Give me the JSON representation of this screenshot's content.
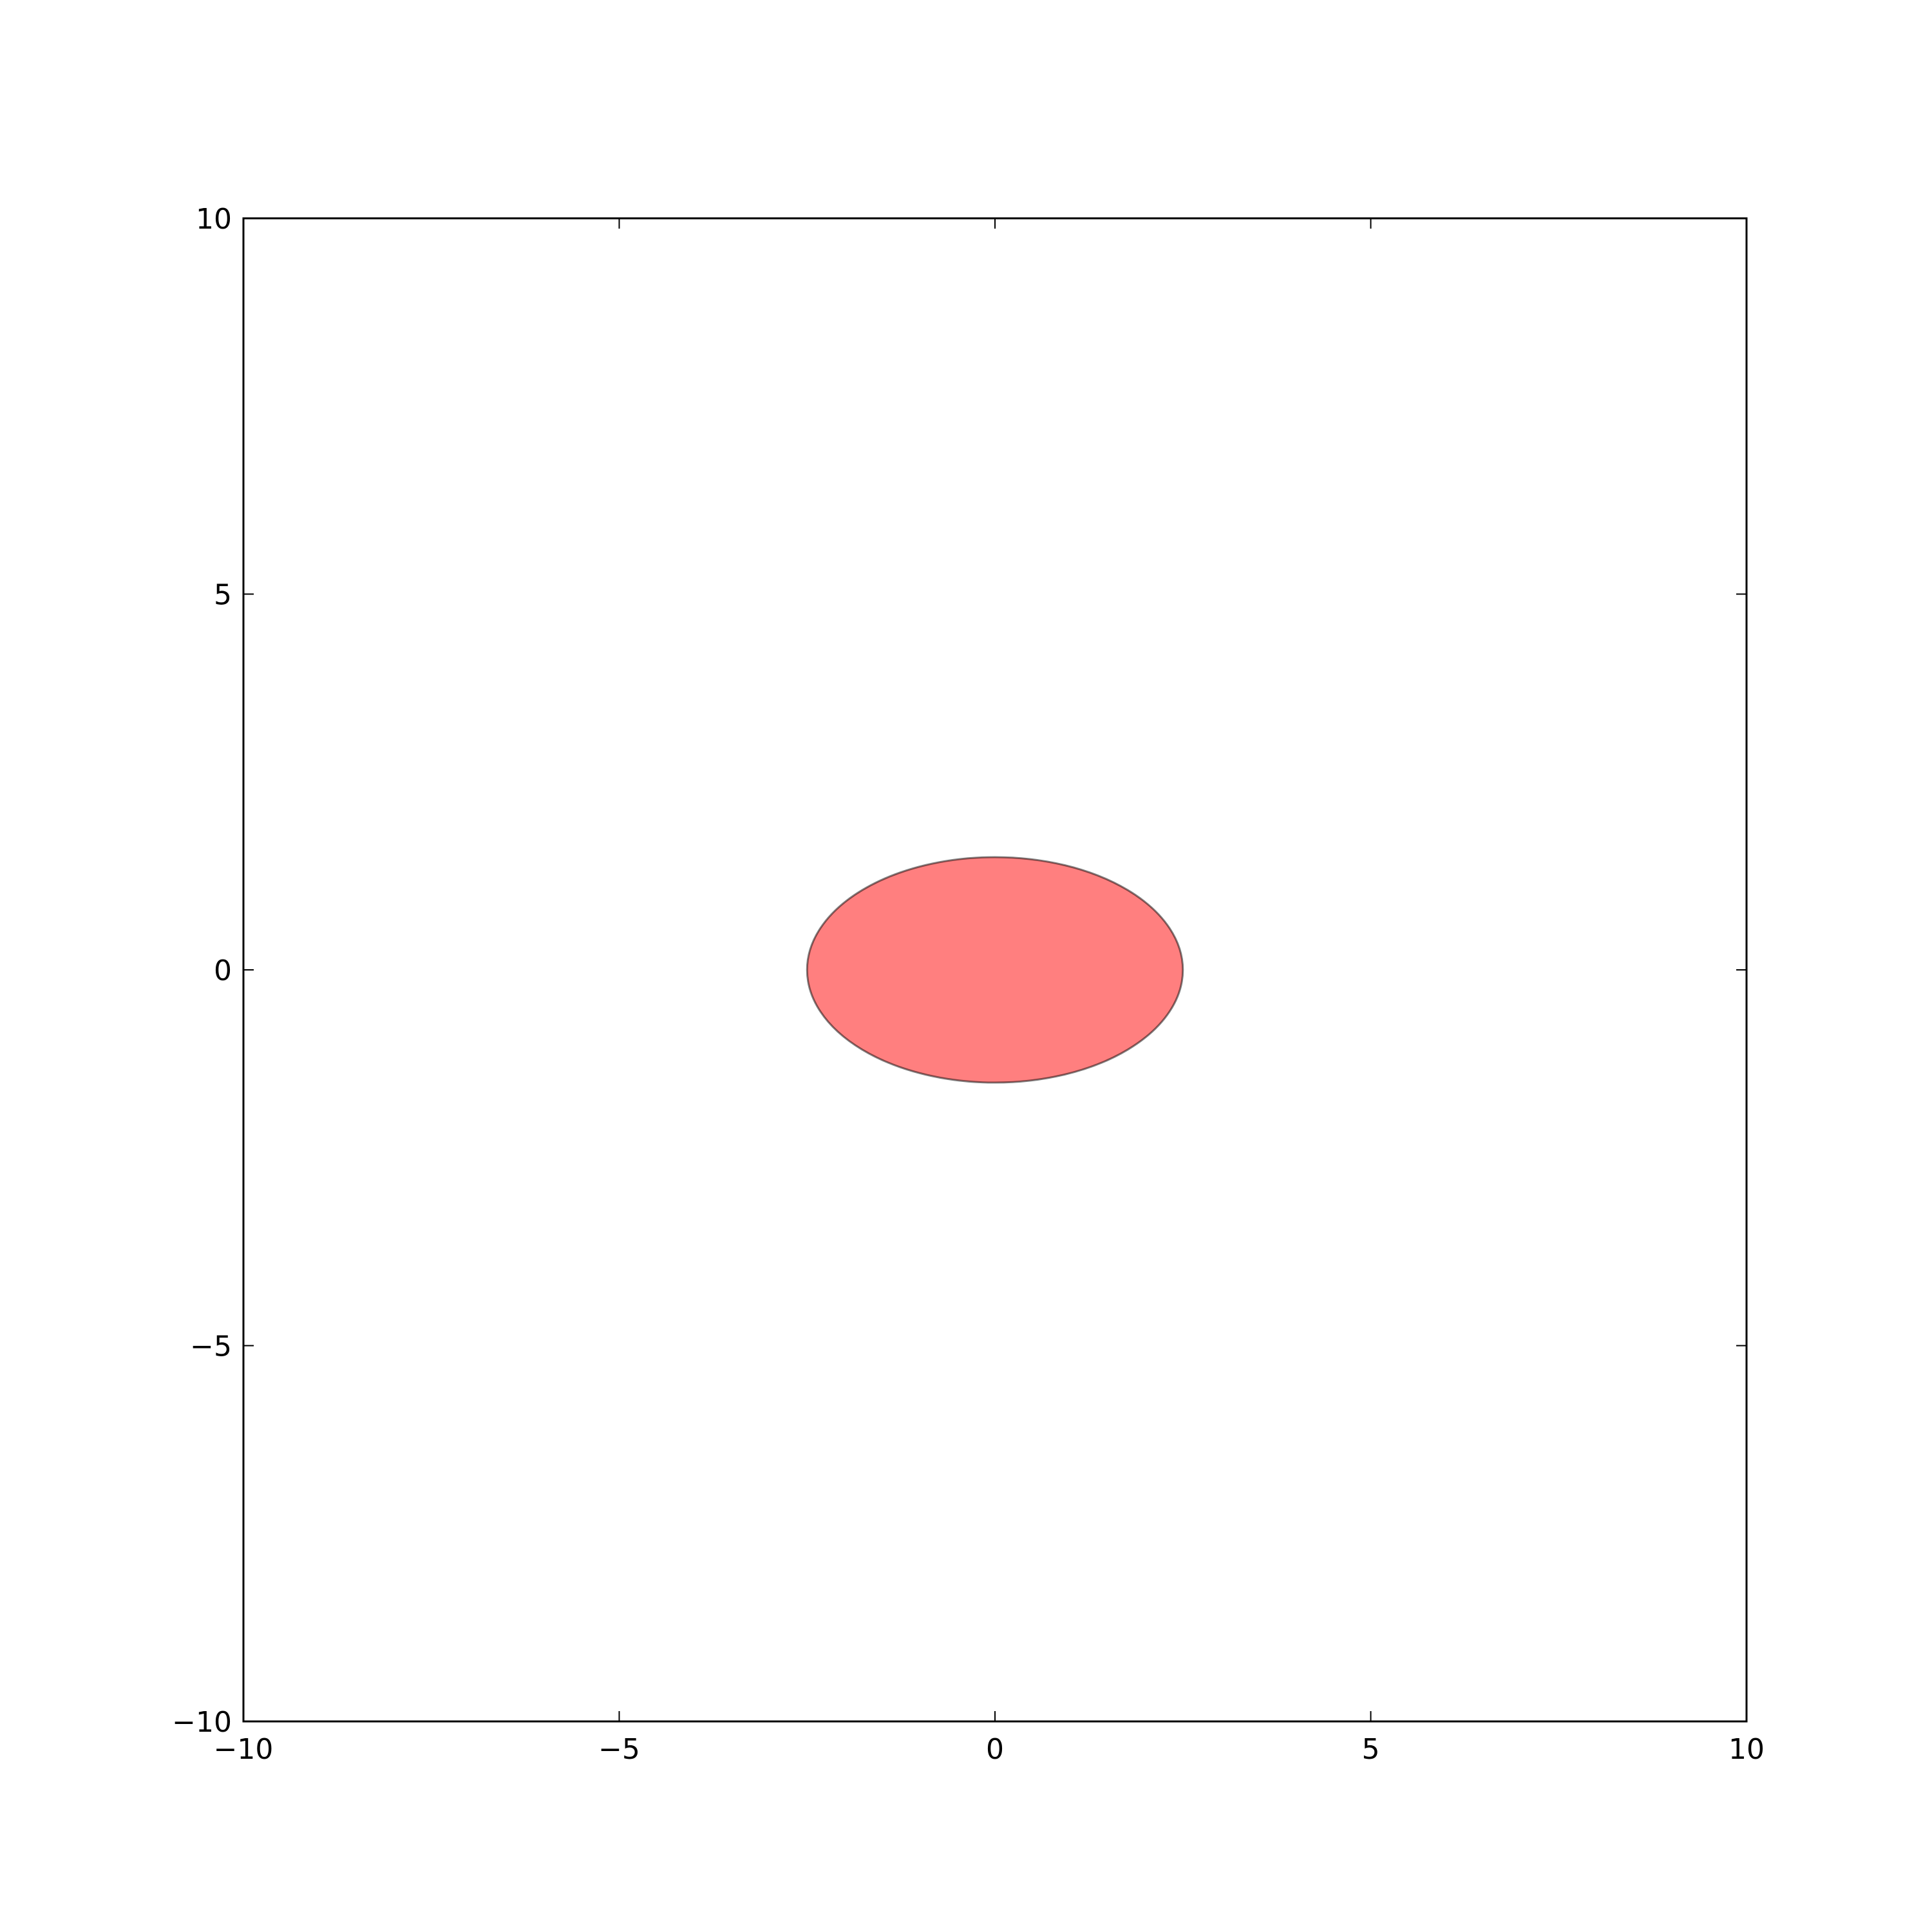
{
  "chart_data": {
    "type": "ellipse",
    "title": "",
    "xlabel": "",
    "ylabel": "",
    "xlim": [
      -10,
      10
    ],
    "ylim": [
      -10,
      10
    ],
    "grid": false,
    "xticks": [
      -10,
      -5,
      0,
      5,
      10
    ],
    "yticks": [
      -10,
      -5,
      0,
      5,
      10
    ],
    "xtick_labels": [
      "−10",
      "−5",
      "0",
      "5",
      "10"
    ],
    "ytick_labels": [
      "−10",
      "−5",
      "0",
      "5",
      "10"
    ],
    "shapes": [
      {
        "name": "ellipse",
        "center": [
          0,
          0
        ],
        "width": 5,
        "height": 3,
        "fill_color": "#ff0000",
        "fill_alpha": 0.5,
        "edge_color": "#000000",
        "edge_alpha": 0.5
      }
    ]
  }
}
